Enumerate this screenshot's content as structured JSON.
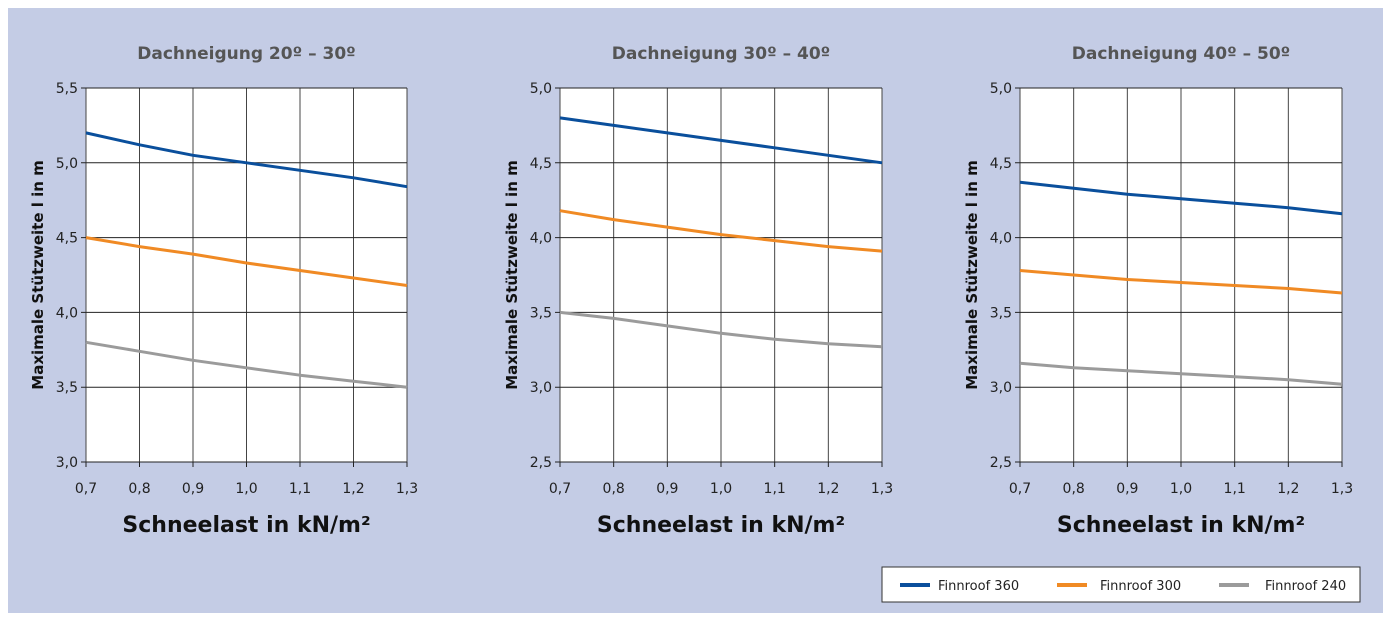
{
  "chart_data": [
    {
      "type": "line",
      "title": "Dachneigung 20º – 30º",
      "xlabel": "Schneelast in kN/m²",
      "ylabel": "Maximale Stützweite l in m",
      "x": [
        0.7,
        0.8,
        0.9,
        1.0,
        1.1,
        1.2,
        1.3
      ],
      "x_tick_labels": [
        "0,7",
        "0,8",
        "0,9",
        "1,0",
        "1,1",
        "1,2",
        "1,3"
      ],
      "y_ticks": [
        3.0,
        3.5,
        4.0,
        4.5,
        5.0,
        5.5
      ],
      "y_tick_labels": [
        "3,0",
        "3,5",
        "4,0",
        "4,5",
        "5,0",
        "5,5"
      ],
      "xlim": [
        0.7,
        1.3
      ],
      "ylim": [
        3.0,
        5.5
      ],
      "grid": true,
      "series": [
        {
          "name": "Finnroof 360",
          "color": "#0a4f9c",
          "values": [
            5.2,
            5.12,
            5.05,
            5.0,
            4.95,
            4.9,
            4.84
          ]
        },
        {
          "name": "Finnroof 300",
          "color": "#f08a24",
          "values": [
            4.5,
            4.44,
            4.39,
            4.33,
            4.28,
            4.23,
            4.18
          ]
        },
        {
          "name": "Finnroof 240",
          "color": "#9b9b9b",
          "values": [
            3.8,
            3.74,
            3.68,
            3.63,
            3.58,
            3.54,
            3.5
          ]
        }
      ]
    },
    {
      "type": "line",
      "title": "Dachneigung 30º – 40º",
      "xlabel": "Schneelast in kN/m²",
      "ylabel": "Maximale Stützweite l in m",
      "x": [
        0.7,
        0.8,
        0.9,
        1.0,
        1.1,
        1.2,
        1.3
      ],
      "x_tick_labels": [
        "0,7",
        "0,8",
        "0,9",
        "1,0",
        "1,1",
        "1,2",
        "1,3"
      ],
      "y_ticks": [
        2.5,
        3.0,
        3.5,
        4.0,
        4.5,
        5.0
      ],
      "y_tick_labels": [
        "2,5",
        "3,0",
        "3,5",
        "4,0",
        "4,5",
        "5,0"
      ],
      "xlim": [
        0.7,
        1.3
      ],
      "ylim": [
        2.5,
        5.0
      ],
      "grid": true,
      "series": [
        {
          "name": "Finnroof 360",
          "color": "#0a4f9c",
          "values": [
            4.8,
            4.75,
            4.7,
            4.65,
            4.6,
            4.55,
            4.5
          ]
        },
        {
          "name": "Finnroof 300",
          "color": "#f08a24",
          "values": [
            4.18,
            4.12,
            4.07,
            4.02,
            3.98,
            3.94,
            3.91
          ]
        },
        {
          "name": "Finnroof 240",
          "color": "#9b9b9b",
          "values": [
            3.5,
            3.46,
            3.41,
            3.36,
            3.32,
            3.29,
            3.27
          ]
        }
      ]
    },
    {
      "type": "line",
      "title": "Dachneigung 40º – 50º",
      "xlabel": "Schneelast in kN/m²",
      "ylabel": "Maximale Stützweite l in m",
      "x": [
        0.7,
        0.8,
        0.9,
        1.0,
        1.1,
        1.2,
        1.3
      ],
      "x_tick_labels": [
        "0,7",
        "0,8",
        "0,9",
        "1,0",
        "1,1",
        "1,2",
        "1,3"
      ],
      "y_ticks": [
        2.5,
        3.0,
        3.5,
        4.0,
        4.5,
        5.0
      ],
      "y_tick_labels": [
        "2,5",
        "3,0",
        "3,5",
        "4,0",
        "4,5",
        "5,0"
      ],
      "xlim": [
        0.7,
        1.3
      ],
      "ylim": [
        2.5,
        5.0
      ],
      "grid": true,
      "series": [
        {
          "name": "Finnroof 360",
          "color": "#0a4f9c",
          "values": [
            4.37,
            4.33,
            4.29,
            4.26,
            4.23,
            4.2,
            4.16
          ]
        },
        {
          "name": "Finnroof 300",
          "color": "#f08a24",
          "values": [
            3.78,
            3.75,
            3.72,
            3.7,
            3.68,
            3.66,
            3.63
          ]
        },
        {
          "name": "Finnroof 240",
          "color": "#9b9b9b",
          "values": [
            3.16,
            3.13,
            3.11,
            3.09,
            3.07,
            3.05,
            3.02
          ]
        }
      ]
    }
  ],
  "legend": {
    "placement": "bottom-right",
    "items": [
      {
        "label": "Finnroof 360",
        "color": "#0a4f9c"
      },
      {
        "label": "Finnroof 300",
        "color": "#f08a24"
      },
      {
        "label": "Finnroof 240",
        "color": "#9b9b9b"
      }
    ]
  }
}
